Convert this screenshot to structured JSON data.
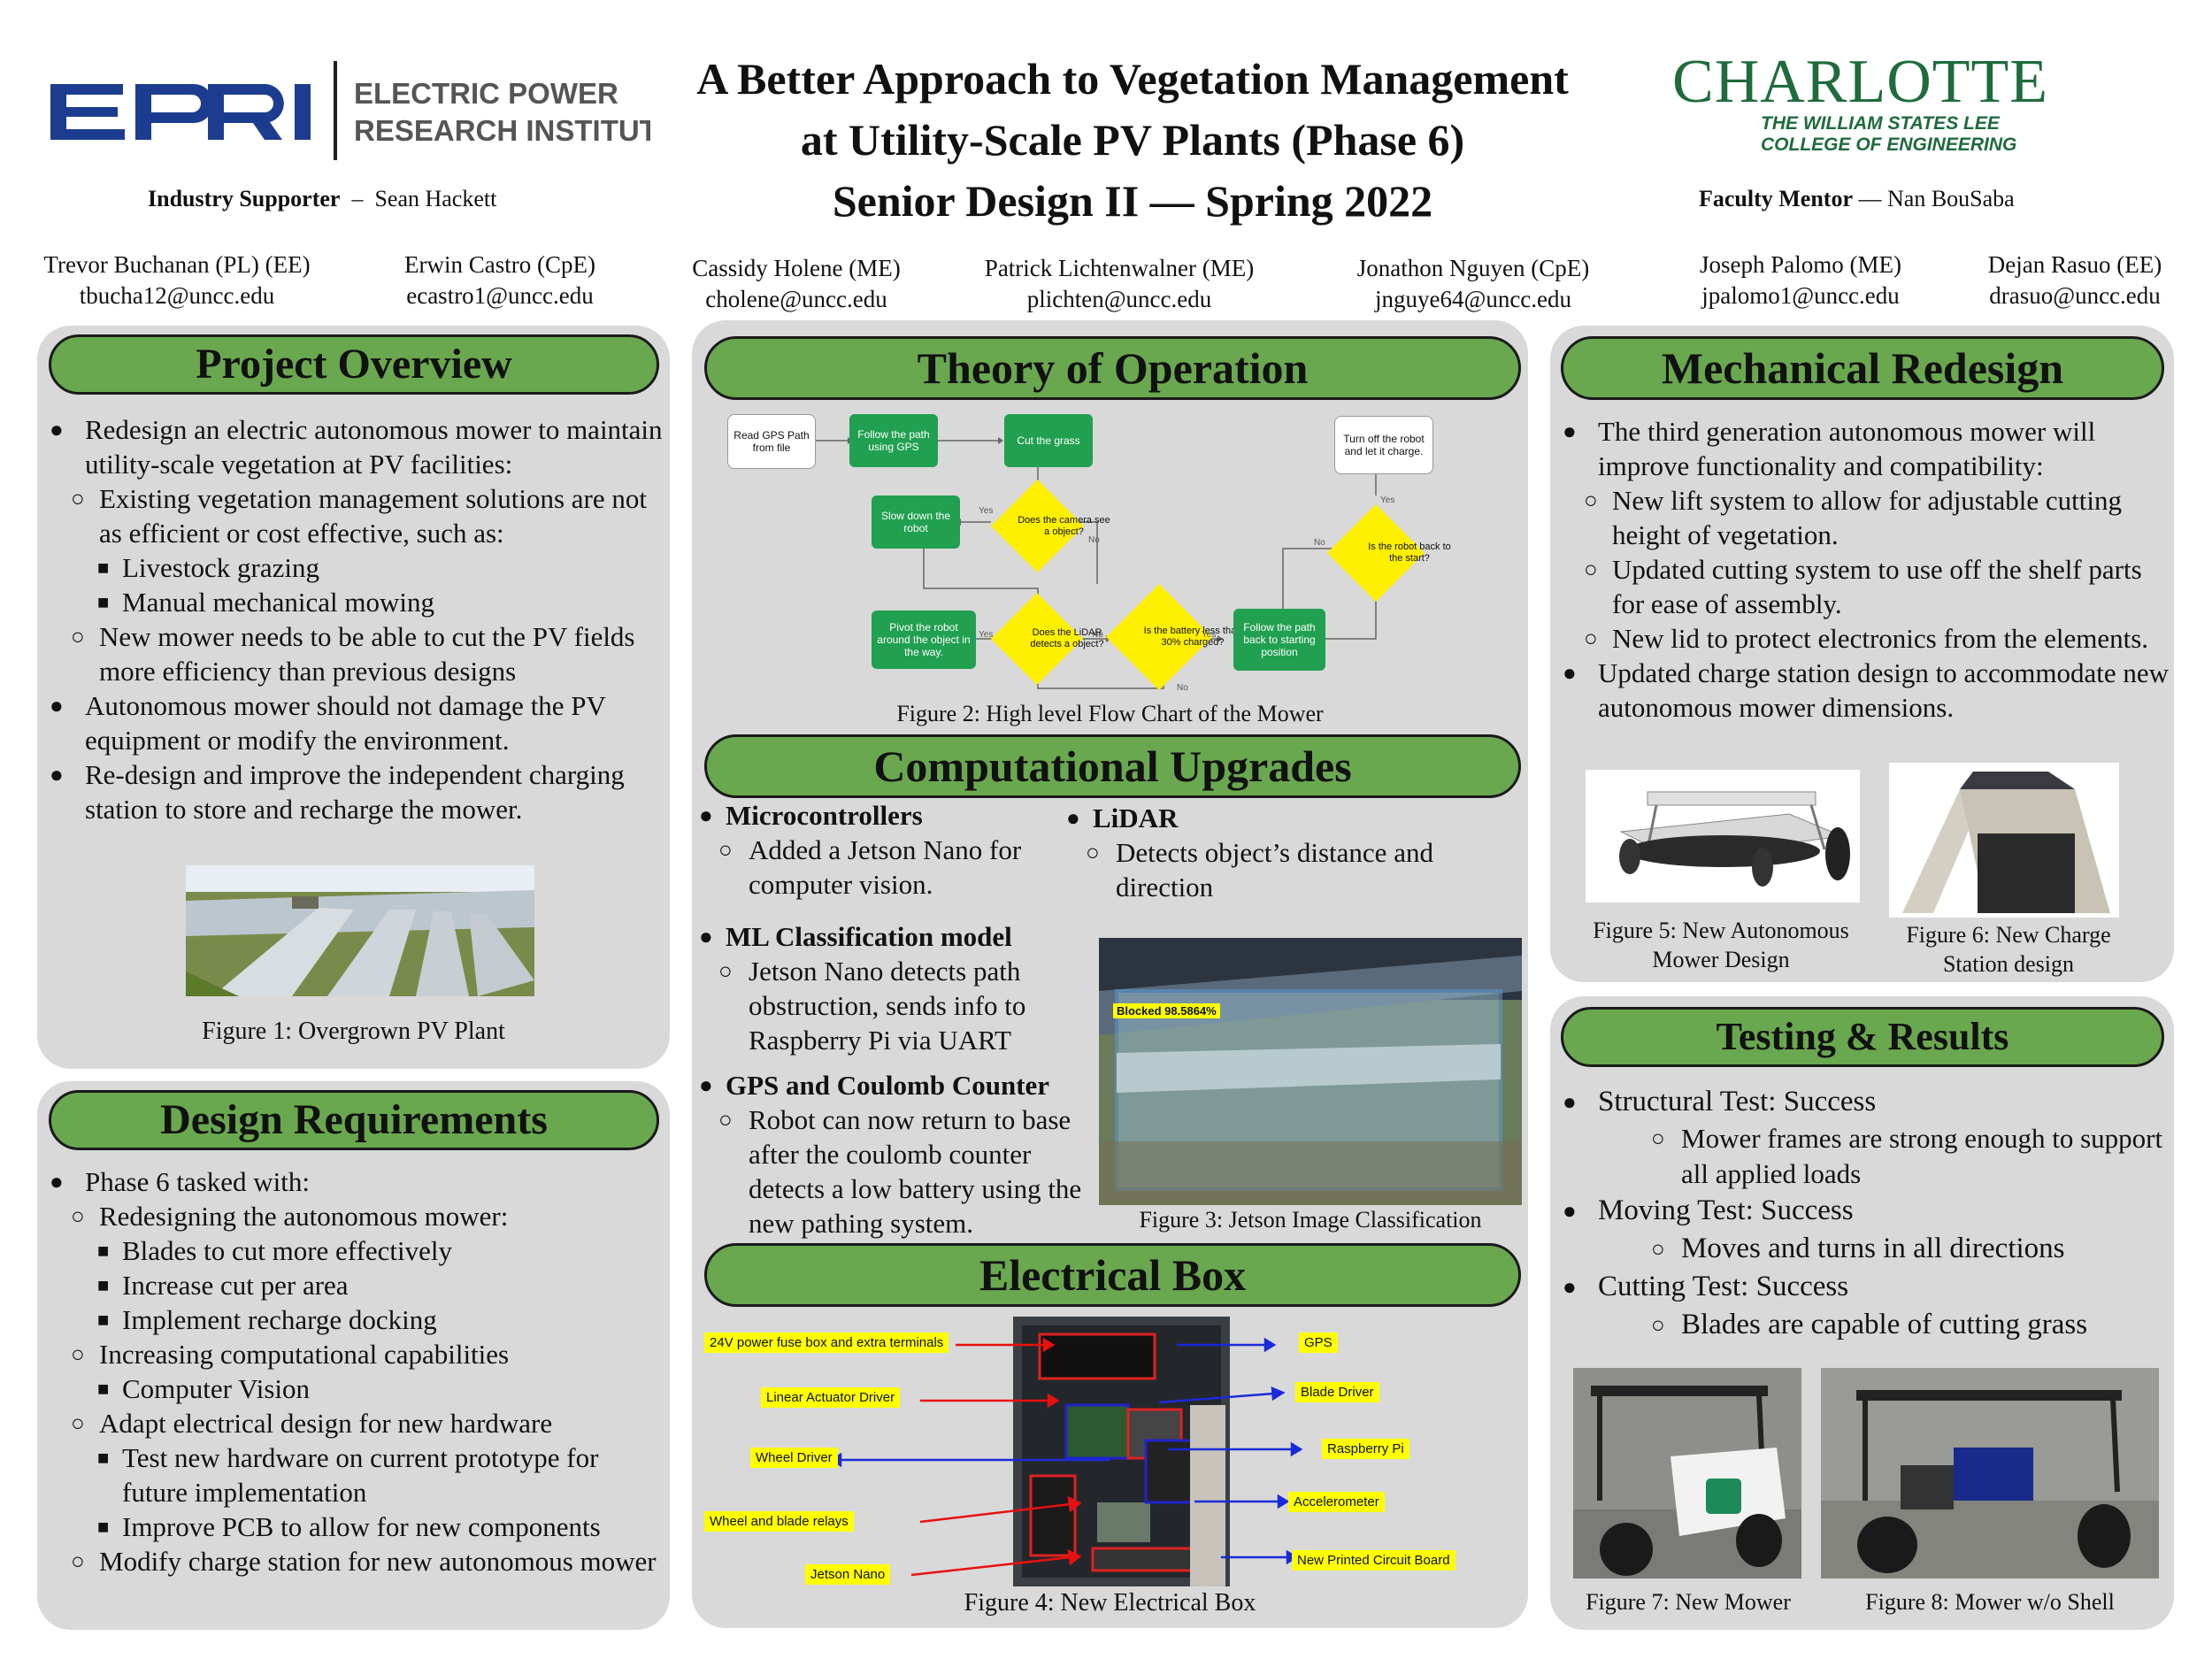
{
  "header": {
    "title_line1": "A Better Approach to Vegetation Management",
    "title_line2": "at Utility-Scale PV Plants (Phase 6)",
    "title_line3": "Senior Design II — Spring 2022",
    "epri_line1": "ELECTRIC POWER",
    "epri_line2": "RESEARCH INSTITUTE",
    "epri_logo_text": "EPRI",
    "charlotte_name": "CHARLOTTE",
    "charlotte_sub1": "THE WILLIAM STATES LEE",
    "charlotte_sub2": "COLLEGE OF ENGINEERING",
    "industry_label": "Industry Supporter",
    "industry_sep": "–",
    "industry_name": "Sean Hackett",
    "faculty_label": "Faculty Mentor",
    "faculty_sep": "—",
    "faculty_name": "Nan BouSaba"
  },
  "team": [
    {
      "name": "Trevor Buchanan (PL) (EE)",
      "email": "tbucha12@uncc.edu"
    },
    {
      "name": "Erwin Castro (CpE)",
      "email": "ecastro1@uncc.edu"
    },
    {
      "name": "Cassidy Holene (ME)",
      "email": "cholene@uncc.edu"
    },
    {
      "name": "Patrick Lichtenwalner (ME)",
      "email": "plichten@uncc.edu"
    },
    {
      "name": "Jonathon Nguyen (CpE)",
      "email": "jnguye64@uncc.edu"
    },
    {
      "name": "Joseph Palomo (ME)",
      "email": "jpalomo1@uncc.edu"
    },
    {
      "name": "Dejan Rasuo (EE)",
      "email": "drasuo@uncc.edu"
    }
  ],
  "overview": {
    "heading": "Project Overview",
    "items": [
      "Redesign an electric autonomous mower to maintain utility-scale vegetation at PV facilities:",
      "Existing vegetation management solutions are not as efficient or cost effective, such as:",
      "Livestock grazing",
      "Manual mechanical mowing",
      "New mower needs to be able to cut the PV fields more efficiency than previous designs",
      "Autonomous mower should not damage the PV equipment or modify the environment.",
      "Re-design and improve the independent charging station to store and recharge the mower."
    ],
    "caption": "Figure 1: Overgrown PV Plant"
  },
  "requirements": {
    "heading": "Design Requirements",
    "items": [
      "Phase 6 tasked with:",
      "Redesigning the autonomous mower:",
      "Blades to cut more effectively",
      "Increase cut per area",
      "Implement recharge docking",
      "Increasing computational capabilities",
      "Computer Vision",
      "Adapt electrical design for new hardware",
      "Test new hardware on current prototype for future implementation",
      "Improve PCB to allow for new components",
      "Modify charge station for new autonomous mower"
    ]
  },
  "theory": {
    "heading": "Theory of Operation",
    "caption": "Figure 2: High level Flow Chart of the Mower",
    "nodes": {
      "read_gps": "Read GPS Path from file",
      "follow_path": "Follow the path using GPS",
      "cut_grass": "Cut the grass",
      "turn_off": "Turn off the robot and let it charge.",
      "camera": "Does the camera see a object?",
      "slow_down": "Slow down the robot",
      "robot_back": "Is the robot back to the start?",
      "pivot": "Pivot the robot around the object in the way.",
      "lidar": "Does the LiDAR detects a object?",
      "battery": "Is the battery less than 30% charged?",
      "follow_back": "Follow the path back to starting position"
    },
    "labels": {
      "yes": "Yes",
      "no": "No"
    }
  },
  "computational": {
    "heading": "Computational Upgrades",
    "micro_title": "Microcontrollers",
    "micro_text": "Added a Jetson Nano for computer vision.",
    "ml_title": "ML Classification model",
    "ml_text": "Jetson Nano detects path obstruction, sends info to Raspberry Pi via UART",
    "gps_title": "GPS and Coulomb Counter",
    "gps_text": "Robot can now return to base after the coulomb counter detects a low battery using the new pathing system.",
    "lidar_title": "LiDAR",
    "lidar_text": "Detects object’s distance and direction",
    "detection_label": "Blocked 98.5864%",
    "caption": "Figure 3: Jetson Image Classification"
  },
  "electrical": {
    "heading": "Electrical Box",
    "caption": "Figure 4: New Electrical Box",
    "labels_left": [
      "24V power fuse box and extra terminals",
      "Linear Actuator Driver",
      "Wheel Driver",
      "Wheel and blade relays",
      "Jetson Nano"
    ],
    "labels_right": [
      "GPS",
      "Blade Driver",
      "Raspberry Pi",
      "Accelerometer",
      "New Printed Circuit Board"
    ]
  },
  "mechanical": {
    "heading": "Mechanical Redesign",
    "items": [
      "The third generation autonomous mower will improve functionality and compatibility:",
      "New lift system to allow for adjustable cutting height of vegetation.",
      "Updated cutting  system to use off the shelf parts for ease of assembly.",
      "New lid to protect electronics from the elements.",
      "Updated charge station design to accommodate new autonomous mower dimensions."
    ],
    "caption5": "Figure 5: New Autonomous Mower Design",
    "caption6": "Figure 6: New Charge Station design"
  },
  "testing": {
    "heading": "Testing & Results",
    "items": [
      "Structural Test: Success",
      "Mower frames are strong enough to support all applied loads",
      "Moving Test: Success",
      "Moves and turns in all directions",
      "Cutting Test: Success",
      "Blades are capable of cutting grass"
    ],
    "caption7": "Figure 7: New Mower",
    "caption8": "Figure 8: Mower w/o Shell"
  },
  "colors": {
    "panel": "#d9d9d9",
    "heading_green": "#6aa84f",
    "charlotte_green": "#1e6b3c",
    "epri_blue": "#1c3d8f"
  }
}
